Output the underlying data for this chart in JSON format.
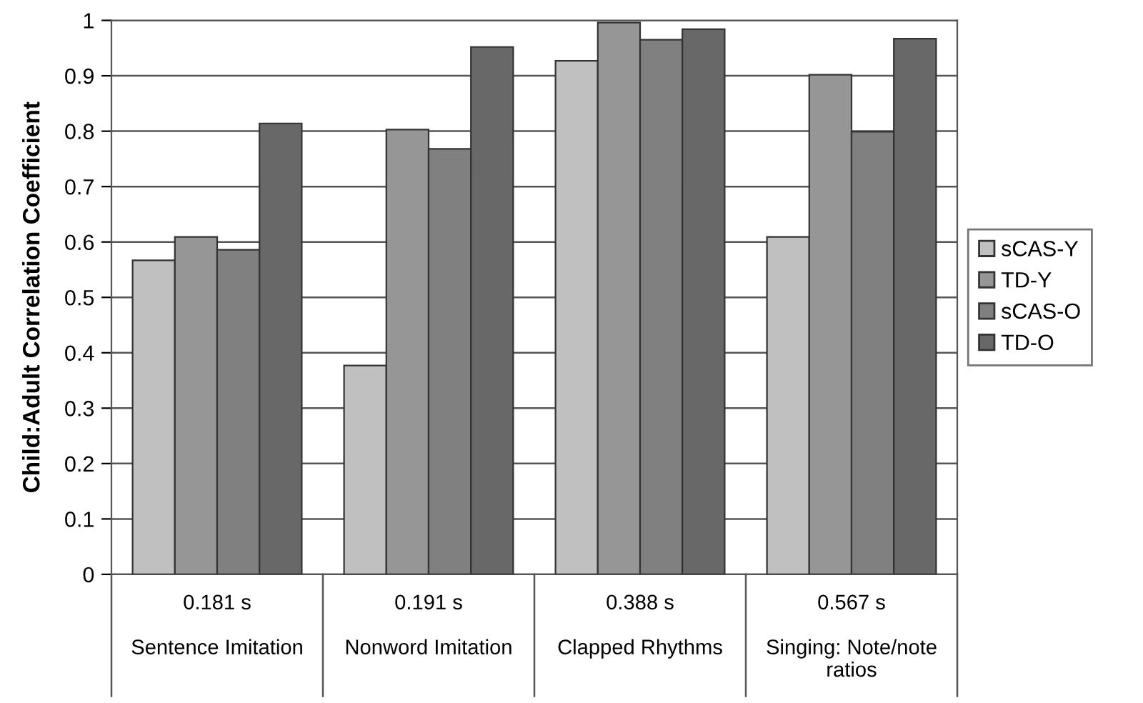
{
  "chart_data": {
    "type": "bar",
    "ylabel": "Child:Adult Correlation Coefficient",
    "categories": [
      "0.181 s\n\nSentence Imitation",
      "0.191 s\n\nNonword Imitation",
      "0.388 s\n\nClapped Rhythms",
      "0.567 s\n\nSinging: Note/note\nratios"
    ],
    "series": [
      {
        "name": "sCAS-Y",
        "color": "#c0c0c0",
        "values": [
          0.567,
          0.377,
          0.927,
          0.609
        ]
      },
      {
        "name": "TD-Y",
        "color": "#969696",
        "values": [
          0.609,
          0.803,
          0.996,
          0.902
        ]
      },
      {
        "name": "sCAS-O",
        "color": "#808080",
        "values": [
          0.586,
          0.768,
          0.965,
          0.799
        ]
      },
      {
        "name": "TD-O",
        "color": "#686868",
        "values": [
          0.814,
          0.952,
          0.984,
          0.967
        ]
      }
    ],
    "ylim": [
      0,
      1
    ],
    "yticks": [
      0,
      0.1,
      0.2,
      0.3,
      0.4,
      0.5,
      0.6,
      0.7,
      0.8,
      0.9,
      1
    ],
    "grid": "y",
    "legend": "right"
  }
}
